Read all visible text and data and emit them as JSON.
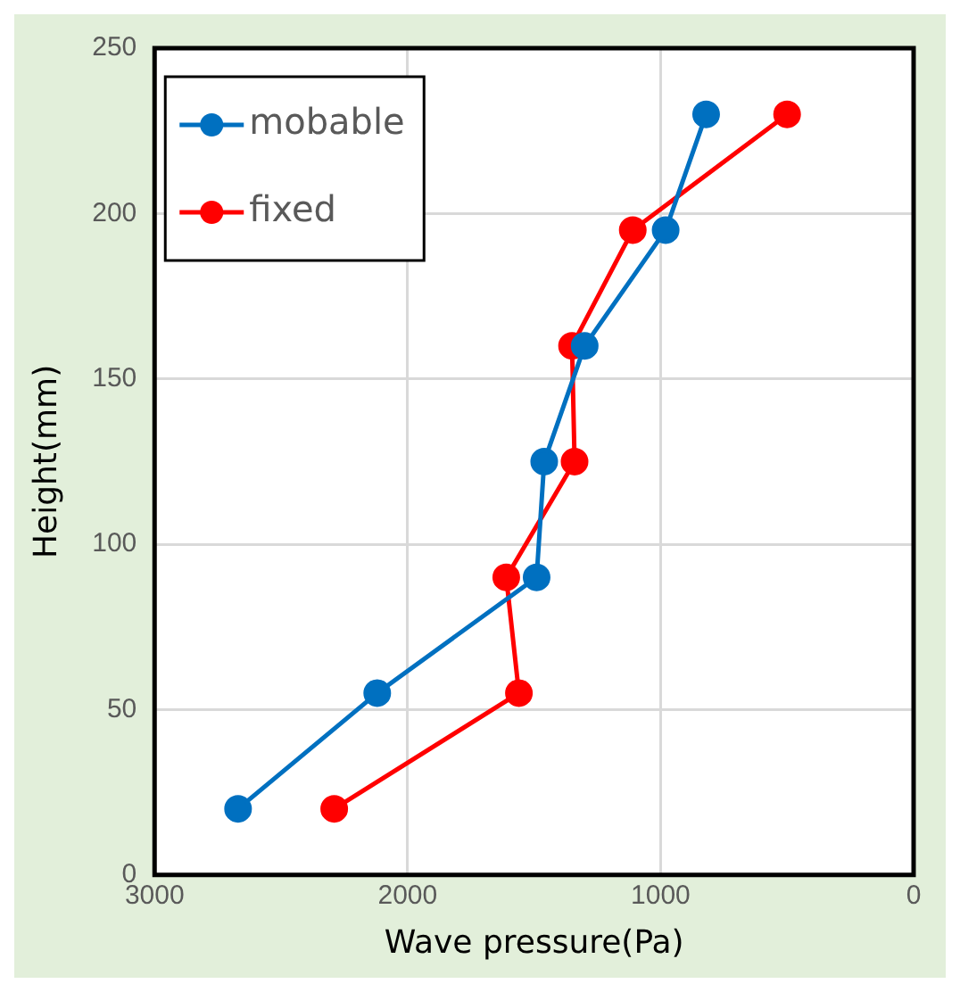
{
  "chart_data": {
    "type": "line",
    "xlabel": "Wave pressure(Pa)",
    "ylabel": "Height(mm)",
    "xlim": [
      3000,
      0
    ],
    "xticks": [
      3000,
      2000,
      1000,
      0
    ],
    "ylim": [
      0,
      250
    ],
    "yticks": [
      0,
      50,
      100,
      150,
      200,
      250
    ],
    "grid": true,
    "legend": "top left",
    "marker": "circle",
    "line_style": "solid",
    "series": [
      {
        "name": "mobable",
        "color": "#0070c0",
        "x": [
          820,
          980,
          1300,
          1460,
          1490,
          2120,
          2670
        ],
        "values": [
          230,
          195,
          160,
          125,
          90,
          55,
          20
        ]
      },
      {
        "name": "fixed",
        "color": "#ff0000",
        "x": [
          500,
          1110,
          1350,
          1340,
          1610,
          1560,
          2290
        ],
        "values": [
          230,
          195,
          160,
          125,
          90,
          55,
          20
        ]
      }
    ]
  }
}
